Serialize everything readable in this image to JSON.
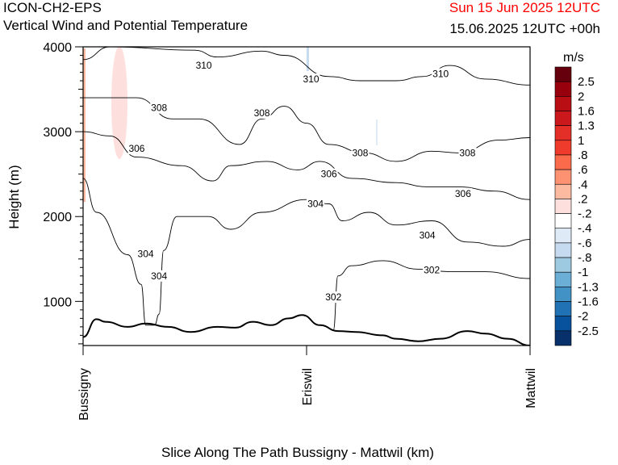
{
  "header": {
    "model": "ICON-CH2-EPS",
    "subtitle": "Vertical Wind and Potential Temperature",
    "valid_time": "Sun 15 Jun 2025 12UTC",
    "run_info": "15.06.2025 12UTC +00h"
  },
  "colorbar": {
    "units": "m/s",
    "labels": [
      "2.5",
      "2",
      "1.6",
      "1.3",
      "1",
      ".8",
      ".6",
      ".4",
      ".2",
      "-.2",
      "-.4",
      "-.6",
      "-.8",
      "-1",
      "-1.3",
      "-1.6",
      "-2",
      "-2.5"
    ],
    "colors": [
      "#67000d",
      "#99000d",
      "#b80e14",
      "#cb181d",
      "#e32f27",
      "#ef3b2c",
      "#fb6a4a",
      "#fc9272",
      "#fcbba1",
      "#fde0dd",
      "#ffffff",
      "#deebf7",
      "#c6dbef",
      "#9ecae1",
      "#6baed6",
      "#4292c6",
      "#2171b5",
      "#08519c",
      "#08306b"
    ]
  },
  "chart_data": {
    "type": "contour",
    "title": "Vertical Wind and Potential Temperature",
    "xlabel": "Slice Along The Path Bussigny - Mattwil (km)",
    "ylabel": "Height (m)",
    "ylim": [
      480,
      4000
    ],
    "yticks": [
      1000,
      2000,
      3000,
      4000
    ],
    "x_tick_labels": [
      "Bussigny",
      "Eriswil",
      "Mattwil"
    ],
    "contours": [
      {
        "level": "302",
        "points": [
          [
            0.56,
            660
          ],
          [
            0.57,
            1300
          ],
          [
            0.6,
            1420
          ],
          [
            0.67,
            1480
          ],
          [
            0.75,
            1380
          ],
          [
            0.82,
            1350
          ],
          [
            0.9,
            1350
          ],
          [
            1.0,
            1270
          ]
        ],
        "labels": [
          [
            0.56,
            1050
          ],
          [
            0.78,
            1370
          ]
        ]
      },
      {
        "level": "304",
        "points": [
          [
            0.0,
            2450
          ],
          [
            0.03,
            2050
          ],
          [
            0.1,
            1550
          ],
          [
            0.13,
            1200
          ],
          [
            0.14,
            720
          ],
          [
            0.16,
            720
          ],
          [
            0.17,
            850
          ],
          [
            0.18,
            1600
          ],
          [
            0.21,
            2000
          ],
          [
            0.28,
            2000
          ],
          [
            0.33,
            1850
          ],
          [
            0.4,
            2050
          ],
          [
            0.5,
            2200
          ],
          [
            0.55,
            2150
          ],
          [
            0.58,
            1950
          ],
          [
            0.64,
            2050
          ],
          [
            0.7,
            1900
          ],
          [
            0.78,
            1950
          ],
          [
            0.86,
            1700
          ],
          [
            0.94,
            1650
          ],
          [
            1.0,
            1730
          ]
        ],
        "labels": [
          [
            0.14,
            1560
          ],
          [
            0.17,
            1300
          ],
          [
            0.52,
            2150
          ],
          [
            0.77,
            1780
          ]
        ]
      },
      {
        "level": "306",
        "points": [
          [
            0.0,
            3000
          ],
          [
            0.06,
            2950
          ],
          [
            0.12,
            2700
          ],
          [
            0.22,
            2600
          ],
          [
            0.29,
            2420
          ],
          [
            0.33,
            2600
          ],
          [
            0.41,
            2650
          ],
          [
            0.48,
            2550
          ],
          [
            0.53,
            2650
          ],
          [
            0.6,
            2450
          ],
          [
            0.7,
            2400
          ],
          [
            0.77,
            2350
          ],
          [
            0.84,
            2350
          ],
          [
            0.92,
            2300
          ],
          [
            1.0,
            2200
          ]
        ],
        "labels": [
          [
            0.12,
            2800
          ],
          [
            0.55,
            2500
          ],
          [
            0.85,
            2270
          ]
        ]
      },
      {
        "level": "308",
        "points": [
          [
            0.0,
            3400
          ],
          [
            0.12,
            3400
          ],
          [
            0.2,
            3150
          ],
          [
            0.26,
            3150
          ],
          [
            0.35,
            2850
          ],
          [
            0.4,
            3150
          ],
          [
            0.45,
            3300
          ],
          [
            0.5,
            3100
          ],
          [
            0.55,
            2850
          ],
          [
            0.63,
            2750
          ],
          [
            0.7,
            2650
          ],
          [
            0.78,
            2770
          ],
          [
            0.84,
            2750
          ],
          [
            0.93,
            2900
          ],
          [
            1.0,
            2930
          ]
        ],
        "labels": [
          [
            0.17,
            3280
          ],
          [
            0.4,
            3220
          ],
          [
            0.62,
            2750
          ],
          [
            0.86,
            2750
          ]
        ]
      },
      {
        "level": "310",
        "points": [
          [
            0.0,
            3850
          ],
          [
            0.06,
            4000
          ],
          [
            0.25,
            3960
          ],
          [
            0.3,
            3880
          ],
          [
            0.4,
            3950
          ],
          [
            0.45,
            3900
          ],
          [
            0.55,
            3650
          ],
          [
            0.62,
            3600
          ],
          [
            0.7,
            3600
          ],
          [
            0.76,
            3650
          ],
          [
            0.82,
            3780
          ],
          [
            0.9,
            3620
          ],
          [
            1.0,
            3550
          ]
        ],
        "labels": [
          [
            0.27,
            3780
          ],
          [
            0.51,
            3620
          ],
          [
            0.8,
            3680
          ]
        ]
      }
    ],
    "terrain": [
      [
        0.0,
        580
      ],
      [
        0.03,
        790
      ],
      [
        0.05,
        760
      ],
      [
        0.1,
        700
      ],
      [
        0.14,
        740
      ],
      [
        0.19,
        700
      ],
      [
        0.24,
        640
      ],
      [
        0.3,
        700
      ],
      [
        0.34,
        690
      ],
      [
        0.38,
        760
      ],
      [
        0.42,
        720
      ],
      [
        0.46,
        800
      ],
      [
        0.49,
        840
      ],
      [
        0.53,
        720
      ],
      [
        0.57,
        650
      ],
      [
        0.61,
        640
      ],
      [
        0.67,
        600
      ],
      [
        0.7,
        560
      ],
      [
        0.75,
        530
      ],
      [
        0.8,
        560
      ],
      [
        0.86,
        650
      ],
      [
        0.9,
        620
      ],
      [
        0.95,
        560
      ],
      [
        1.0,
        480
      ]
    ],
    "grid": false
  }
}
